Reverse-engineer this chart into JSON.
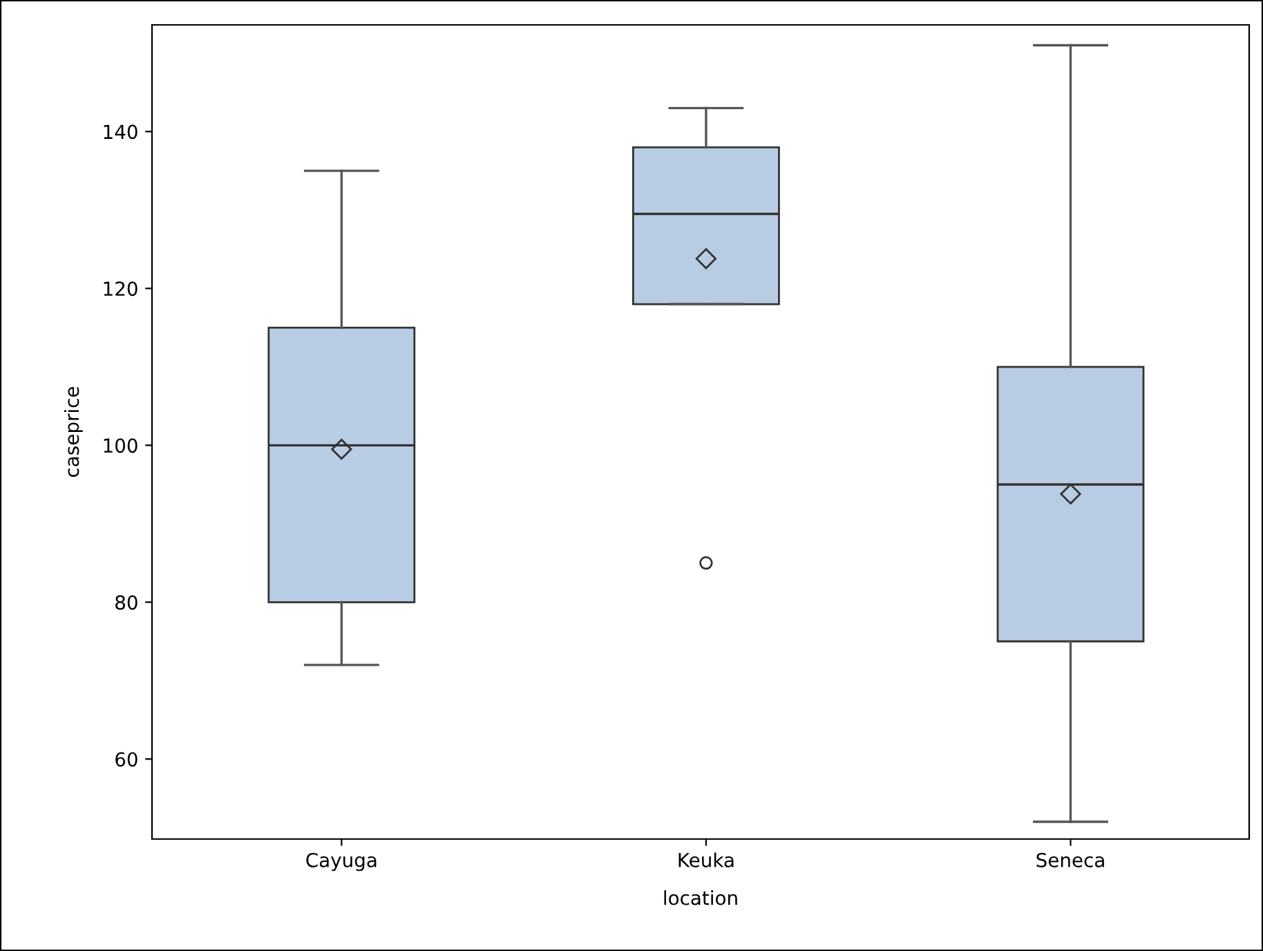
{
  "chart_data": {
    "type": "box",
    "xlabel": "location",
    "ylabel": "caseprice",
    "categories": [
      "Cayuga",
      "Keuka",
      "Seneca"
    ],
    "boxes": [
      {
        "low": 72,
        "q1": 80,
        "median": 100,
        "q3": 115,
        "high": 135,
        "mean": 99.5
      },
      {
        "low": 118,
        "q1": 118,
        "median": 129.5,
        "q3": 138,
        "high": 143,
        "mean": 123.8,
        "outliers": [
          85
        ]
      },
      {
        "low": 52,
        "q1": 75,
        "median": 95,
        "q3": 110,
        "high": 151,
        "mean": 93.8
      }
    ],
    "color": "#b8cce4",
    "ylim": [
      49.8,
      153.6
    ],
    "yticks": [
      60,
      80,
      100,
      120,
      140
    ],
    "grid": false,
    "legend": false
  }
}
